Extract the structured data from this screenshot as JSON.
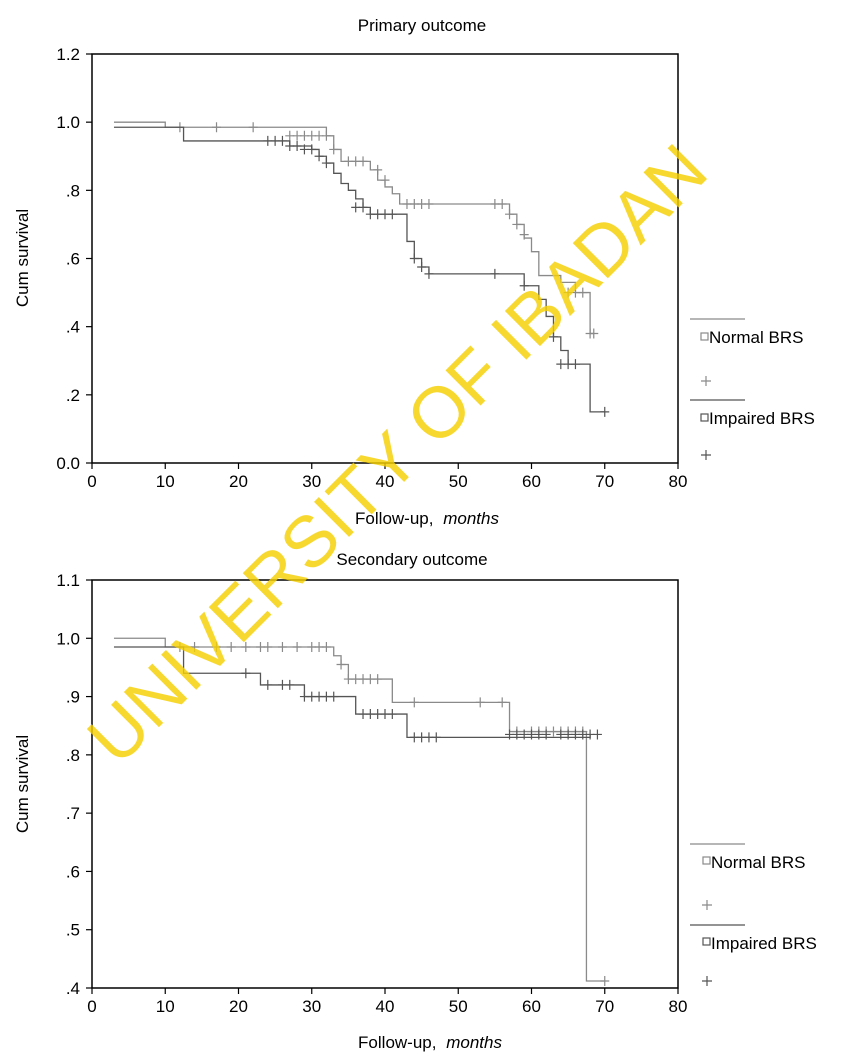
{
  "watermark": "UNIVERSITY OF IBADAN",
  "colors": {
    "normal": "#8a8a8a",
    "impaired": "#555555",
    "watermark": "#f5d000",
    "axis": "#000000"
  },
  "chart_data": [
    {
      "type": "line",
      "subtype": "kaplan-meier step",
      "title": "Primary outcome",
      "xlabel": "Follow-up,",
      "xlabel_italic": "months",
      "ylabel": "Cum survival",
      "xlim": [
        0,
        80
      ],
      "ylim": [
        0.0,
        1.2
      ],
      "xticks": [
        0,
        10,
        20,
        30,
        40,
        50,
        60,
        70,
        80
      ],
      "xtick_labels": [
        "0",
        "10",
        "20",
        "30",
        "40",
        "50",
        "60",
        "70",
        "80"
      ],
      "yticks": [
        0.0,
        0.2,
        0.4,
        0.6,
        0.8,
        1.0,
        1.2
      ],
      "ytick_labels": [
        "0.0",
        ".2",
        ".4",
        ".6",
        ".8",
        "1.0",
        "1.2"
      ],
      "legend_position": "right",
      "legend": [
        {
          "label": "Normal BRS",
          "censor_label": ""
        },
        {
          "label": "Impaired BRS",
          "censor_label": ""
        }
      ],
      "series": [
        {
          "name": "Normal BRS",
          "color_key": "normal",
          "steps": [
            [
              3,
              1.0
            ],
            [
              10,
              0.985
            ],
            [
              32,
              0.96
            ],
            [
              33,
              0.92
            ],
            [
              34,
              0.885
            ],
            [
              38,
              0.86
            ],
            [
              39,
              0.83
            ],
            [
              40,
              0.81
            ],
            [
              41,
              0.79
            ],
            [
              42,
              0.76
            ],
            [
              57,
              0.73
            ],
            [
              58,
              0.7
            ],
            [
              59,
              0.66
            ],
            [
              60,
              0.62
            ],
            [
              61,
              0.55
            ],
            [
              64,
              0.53
            ],
            [
              66,
              0.5
            ],
            [
              68,
              0.38
            ],
            [
              68.5,
              0.38
            ]
          ],
          "censored": [
            [
              12,
              0.985
            ],
            [
              17,
              0.985
            ],
            [
              22,
              0.985
            ],
            [
              27,
              0.96
            ],
            [
              28,
              0.96
            ],
            [
              29,
              0.96
            ],
            [
              30,
              0.96
            ],
            [
              31,
              0.96
            ],
            [
              32,
              0.96
            ],
            [
              33,
              0.92
            ],
            [
              35,
              0.885
            ],
            [
              36,
              0.885
            ],
            [
              37,
              0.885
            ],
            [
              39,
              0.86
            ],
            [
              40,
              0.83
            ],
            [
              43,
              0.76
            ],
            [
              44,
              0.76
            ],
            [
              45,
              0.76
            ],
            [
              46,
              0.76
            ],
            [
              55,
              0.76
            ],
            [
              56,
              0.76
            ],
            [
              57,
              0.73
            ],
            [
              58,
              0.7
            ],
            [
              59,
              0.67
            ],
            [
              65,
              0.5
            ],
            [
              66,
              0.5
            ],
            [
              67,
              0.5
            ],
            [
              68,
              0.38
            ],
            [
              68.5,
              0.38
            ]
          ]
        },
        {
          "name": "Impaired BRS",
          "color_key": "impaired",
          "steps": [
            [
              3,
              0.985
            ],
            [
              12.5,
              0.945
            ],
            [
              27,
              0.93
            ],
            [
              30,
              0.92
            ],
            [
              31,
              0.9
            ],
            [
              32,
              0.88
            ],
            [
              33,
              0.85
            ],
            [
              34,
              0.82
            ],
            [
              35,
              0.8
            ],
            [
              36,
              0.775
            ],
            [
              37,
              0.75
            ],
            [
              38,
              0.73
            ],
            [
              43,
              0.65
            ],
            [
              44,
              0.6
            ],
            [
              45,
              0.575
            ],
            [
              46,
              0.555
            ],
            [
              59,
              0.52
            ],
            [
              61,
              0.48
            ],
            [
              62,
              0.43
            ],
            [
              63,
              0.37
            ],
            [
              64,
              0.33
            ],
            [
              65,
              0.29
            ],
            [
              67,
              0.29
            ],
            [
              68,
              0.15
            ],
            [
              70,
              0.15
            ]
          ],
          "censored": [
            [
              24,
              0.945
            ],
            [
              25,
              0.945
            ],
            [
              26,
              0.945
            ],
            [
              27,
              0.93
            ],
            [
              28,
              0.93
            ],
            [
              29,
              0.92
            ],
            [
              30,
              0.92
            ],
            [
              31,
              0.9
            ],
            [
              32,
              0.88
            ],
            [
              36,
              0.75
            ],
            [
              37,
              0.75
            ],
            [
              38,
              0.73
            ],
            [
              39,
              0.73
            ],
            [
              40,
              0.73
            ],
            [
              41,
              0.73
            ],
            [
              44,
              0.6
            ],
            [
              45,
              0.575
            ],
            [
              46,
              0.555
            ],
            [
              55,
              0.555
            ],
            [
              59,
              0.52
            ],
            [
              63,
              0.37
            ],
            [
              64,
              0.29
            ],
            [
              65,
              0.29
            ],
            [
              66,
              0.29
            ],
            [
              70,
              0.15
            ]
          ]
        }
      ]
    },
    {
      "type": "line",
      "subtype": "kaplan-meier step",
      "title": "Secondary outcome",
      "xlabel": "Follow-up,",
      "xlabel_italic": "months",
      "ylabel": "Cum survival",
      "xlim": [
        0,
        80
      ],
      "ylim": [
        0.4,
        1.1
      ],
      "xticks": [
        0,
        10,
        20,
        30,
        40,
        50,
        60,
        70,
        80
      ],
      "xtick_labels": [
        "0",
        "10",
        "20",
        "30",
        "40",
        "50",
        "60",
        "70",
        "80"
      ],
      "yticks": [
        0.4,
        0.5,
        0.6,
        0.7,
        0.8,
        0.9,
        1.0,
        1.1
      ],
      "ytick_labels": [
        ".4",
        ".5",
        ".6",
        ".7",
        ".8",
        ".9",
        "1.0",
        "1.1"
      ],
      "legend_position": "right",
      "legend": [
        {
          "label": "Normal BRS",
          "censor_label": ""
        },
        {
          "label": "Impaired BRS",
          "censor_label": ""
        }
      ],
      "series": [
        {
          "name": "Normal BRS",
          "color_key": "normal",
          "steps": [
            [
              3,
              1.0
            ],
            [
              10,
              0.985
            ],
            [
              33,
              0.97
            ],
            [
              34,
              0.955
            ],
            [
              35,
              0.93
            ],
            [
              41,
              0.89
            ],
            [
              57,
              0.84
            ],
            [
              67.5,
              0.84
            ],
            [
              67.5,
              0.412
            ],
            [
              70,
              0.412
            ]
          ],
          "censored": [
            [
              12,
              0.985
            ],
            [
              14,
              0.985
            ],
            [
              17,
              0.985
            ],
            [
              19,
              0.985
            ],
            [
              21,
              0.985
            ],
            [
              23,
              0.985
            ],
            [
              24,
              0.985
            ],
            [
              26,
              0.985
            ],
            [
              28,
              0.985
            ],
            [
              30,
              0.985
            ],
            [
              31,
              0.985
            ],
            [
              32,
              0.985
            ],
            [
              34,
              0.955
            ],
            [
              35,
              0.93
            ],
            [
              36,
              0.93
            ],
            [
              37,
              0.93
            ],
            [
              38,
              0.93
            ],
            [
              39,
              0.93
            ],
            [
              44,
              0.89
            ],
            [
              53,
              0.89
            ],
            [
              56,
              0.89
            ],
            [
              58,
              0.84
            ],
            [
              60,
              0.84
            ],
            [
              61,
              0.84
            ],
            [
              62,
              0.84
            ],
            [
              63,
              0.84
            ],
            [
              64,
              0.84
            ],
            [
              65,
              0.84
            ],
            [
              66,
              0.84
            ],
            [
              67,
              0.84
            ],
            [
              70,
              0.412
            ]
          ]
        },
        {
          "name": "Impaired BRS",
          "color_key": "impaired",
          "steps": [
            [
              3,
              0.985
            ],
            [
              12.5,
              0.94
            ],
            [
              23,
              0.92
            ],
            [
              29,
              0.9
            ],
            [
              36,
              0.87
            ],
            [
              43,
              0.83
            ],
            [
              68,
              0.835
            ]
          ],
          "censored": [
            [
              21,
              0.94
            ],
            [
              24,
              0.92
            ],
            [
              26,
              0.92
            ],
            [
              27,
              0.92
            ],
            [
              29,
              0.9
            ],
            [
              30,
              0.9
            ],
            [
              31,
              0.9
            ],
            [
              32,
              0.9
            ],
            [
              33,
              0.9
            ],
            [
              37,
              0.87
            ],
            [
              38,
              0.87
            ],
            [
              39,
              0.87
            ],
            [
              40,
              0.87
            ],
            [
              41,
              0.87
            ],
            [
              44,
              0.83
            ],
            [
              45,
              0.83
            ],
            [
              46,
              0.83
            ],
            [
              47,
              0.83
            ],
            [
              57,
              0.835
            ],
            [
              58,
              0.835
            ],
            [
              59,
              0.835
            ],
            [
              60,
              0.835
            ],
            [
              61,
              0.835
            ],
            [
              62,
              0.835
            ],
            [
              64,
              0.835
            ],
            [
              65,
              0.835
            ],
            [
              66,
              0.835
            ],
            [
              67,
              0.835
            ],
            [
              68,
              0.835
            ],
            [
              69,
              0.835
            ]
          ]
        }
      ]
    }
  ]
}
